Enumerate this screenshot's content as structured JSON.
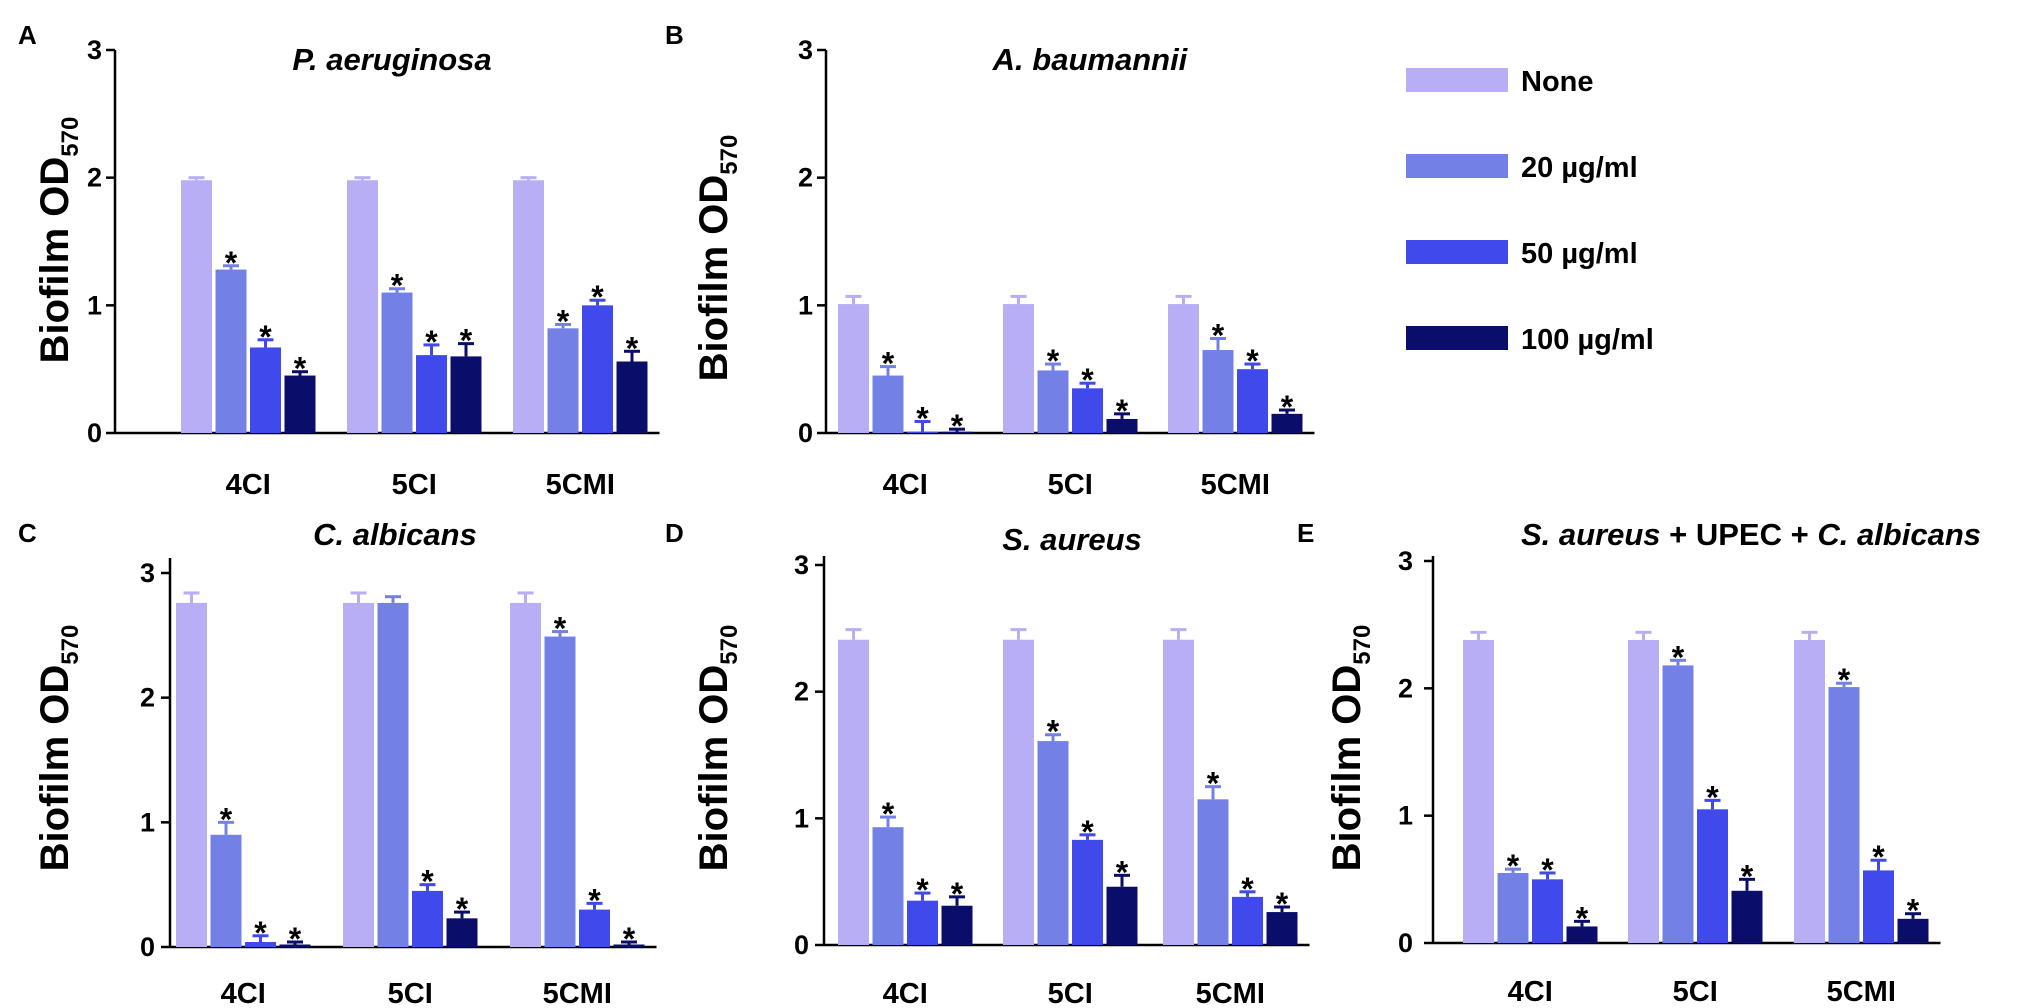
{
  "legend": {
    "items": [
      {
        "label": "None",
        "color": "#B8AEF5"
      },
      {
        "label": "20 µg/ml",
        "color": "#7381E6"
      },
      {
        "label": "50 µg/ml",
        "color": "#3F49EC"
      },
      {
        "label": "100 µg/ml",
        "color": "#0B0D6B"
      }
    ]
  },
  "chart_data": [
    {
      "panel": "A",
      "type": "bar",
      "title": "P. aeruginosa",
      "ylabel": "Biofilm OD",
      "ylabel_sub": "570",
      "categories": [
        "4CI",
        "5CI",
        "5CMI"
      ],
      "ylim": [
        0,
        3
      ],
      "yticks": [
        "0",
        "1",
        "2",
        "3"
      ],
      "series": [
        {
          "name": "None",
          "values": [
            1.98,
            1.98,
            1.98
          ],
          "errors": [
            0.02,
            0.02,
            0.02
          ],
          "significant": [
            false,
            false,
            false
          ]
        },
        {
          "name": "20 µg/ml",
          "values": [
            1.28,
            1.1,
            0.82
          ],
          "errors": [
            0.03,
            0.03,
            0.03
          ],
          "significant": [
            true,
            true,
            true
          ]
        },
        {
          "name": "50 µg/ml",
          "values": [
            0.67,
            0.61,
            1.0
          ],
          "errors": [
            0.06,
            0.08,
            0.04
          ],
          "significant": [
            true,
            true,
            true
          ]
        },
        {
          "name": "100 µg/ml",
          "values": [
            0.45,
            0.6,
            0.56
          ],
          "errors": [
            0.03,
            0.1,
            0.08
          ],
          "significant": [
            true,
            true,
            true
          ]
        }
      ]
    },
    {
      "panel": "B",
      "type": "bar",
      "title": "A. baumannii",
      "ylabel": "Biofilm OD",
      "ylabel_sub": "570",
      "categories": [
        "4CI",
        "5CI",
        "5CMI"
      ],
      "ylim": [
        0,
        3
      ],
      "yticks": [
        "0",
        "1",
        "2",
        "3"
      ],
      "series": [
        {
          "name": "None",
          "values": [
            1.01,
            1.01,
            1.01
          ],
          "errors": [
            0.06,
            0.06,
            0.06
          ],
          "significant": [
            false,
            false,
            false
          ]
        },
        {
          "name": "20 µg/ml",
          "values": [
            0.45,
            0.49,
            0.65
          ],
          "errors": [
            0.07,
            0.05,
            0.09
          ],
          "significant": [
            true,
            true,
            true
          ]
        },
        {
          "name": "50 µg/ml",
          "values": [
            0.01,
            0.35,
            0.5
          ],
          "errors": [
            0.08,
            0.04,
            0.04
          ],
          "significant": [
            true,
            true,
            true
          ]
        },
        {
          "name": "100 µg/ml",
          "values": [
            0.01,
            0.11,
            0.15
          ],
          "errors": [
            0.02,
            0.04,
            0.03
          ],
          "significant": [
            true,
            true,
            true
          ]
        }
      ]
    },
    {
      "panel": "C",
      "type": "bar",
      "title": "C. albicans",
      "ylabel": "Biofilm OD",
      "ylabel_sub": "570",
      "categories": [
        "4CI",
        "5CI",
        "5CMI"
      ],
      "ylim": [
        0,
        3
      ],
      "yticks": [
        "0",
        "1",
        "2",
        "3"
      ],
      "series": [
        {
          "name": "None",
          "values": [
            2.76,
            2.76,
            2.76
          ],
          "errors": [
            0.08,
            0.08,
            0.08
          ],
          "significant": [
            false,
            false,
            false
          ]
        },
        {
          "name": "20 µg/ml",
          "values": [
            0.9,
            2.76,
            2.49
          ],
          "errors": [
            0.1,
            0.05,
            0.04
          ],
          "significant": [
            true,
            false,
            true
          ]
        },
        {
          "name": "50 µg/ml",
          "values": [
            0.04,
            0.45,
            0.3
          ],
          "errors": [
            0.05,
            0.05,
            0.05
          ],
          "significant": [
            true,
            true,
            true
          ]
        },
        {
          "name": "100 µg/ml",
          "values": [
            0.02,
            0.23,
            0.02
          ],
          "errors": [
            0.02,
            0.05,
            0.02
          ],
          "significant": [
            true,
            true,
            true
          ]
        }
      ]
    },
    {
      "panel": "D",
      "type": "bar",
      "title": "S. aureus",
      "ylabel": "Biofilm OD",
      "ylabel_sub": "570",
      "categories": [
        "4CI",
        "5CI",
        "5CMI"
      ],
      "ylim": [
        0,
        3
      ],
      "yticks": [
        "0",
        "1",
        "2",
        "3"
      ],
      "series": [
        {
          "name": "None",
          "values": [
            2.41,
            2.41,
            2.41
          ],
          "errors": [
            0.08,
            0.08,
            0.08
          ],
          "significant": [
            false,
            false,
            false
          ]
        },
        {
          "name": "20 µg/ml",
          "values": [
            0.93,
            1.61,
            1.15
          ],
          "errors": [
            0.08,
            0.05,
            0.1
          ],
          "significant": [
            true,
            true,
            true
          ]
        },
        {
          "name": "50 µg/ml",
          "values": [
            0.35,
            0.83,
            0.38
          ],
          "errors": [
            0.06,
            0.04,
            0.04
          ],
          "significant": [
            true,
            true,
            true
          ]
        },
        {
          "name": "100 µg/ml",
          "values": [
            0.31,
            0.46,
            0.26
          ],
          "errors": [
            0.07,
            0.09,
            0.04
          ],
          "significant": [
            true,
            true,
            true
          ]
        }
      ]
    },
    {
      "panel": "E",
      "type": "bar",
      "title_parts": [
        {
          "text": "S. aureus",
          "italic": true
        },
        {
          "text": " + UPEC + ",
          "italic": false
        },
        {
          "text": "C. albicans",
          "italic": true
        }
      ],
      "ylabel": "Biofilm OD",
      "ylabel_sub": "570",
      "categories": [
        "4CI",
        "5CI",
        "5CMI"
      ],
      "ylim": [
        0,
        3
      ],
      "yticks": [
        "0",
        "1",
        "2",
        "3"
      ],
      "series": [
        {
          "name": "None",
          "values": [
            2.38,
            2.38,
            2.38
          ],
          "errors": [
            0.06,
            0.06,
            0.06
          ],
          "significant": [
            false,
            false,
            false
          ]
        },
        {
          "name": "20 µg/ml",
          "values": [
            0.55,
            2.18,
            2.01
          ],
          "errors": [
            0.03,
            0.04,
            0.03
          ],
          "significant": [
            true,
            true,
            true
          ]
        },
        {
          "name": "50 µg/ml",
          "values": [
            0.5,
            1.05,
            0.57
          ],
          "errors": [
            0.05,
            0.07,
            0.08
          ],
          "significant": [
            true,
            true,
            true
          ]
        },
        {
          "name": "100 µg/ml",
          "values": [
            0.13,
            0.41,
            0.19
          ],
          "errors": [
            0.04,
            0.09,
            0.04
          ],
          "significant": [
            true,
            true,
            true
          ]
        }
      ]
    }
  ],
  "significance_symbol": "*"
}
